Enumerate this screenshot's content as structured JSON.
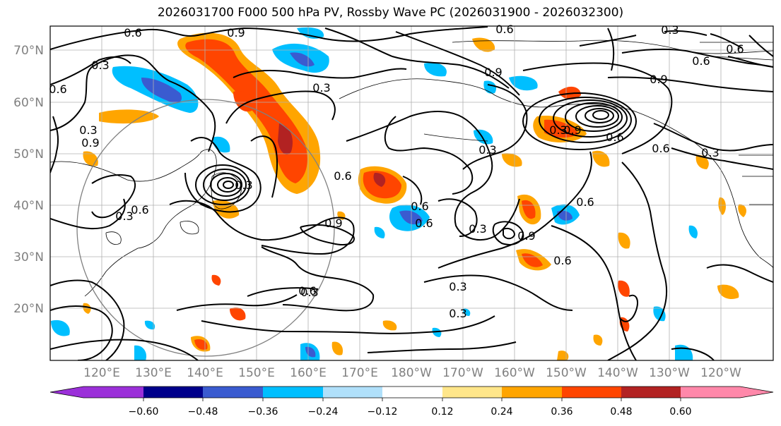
{
  "title": "2026031700 F000 500 hPa PV, Rossby Wave PC (2026031900 - 2026032300)",
  "lat_labels": [
    "70°N",
    "60°N",
    "50°N",
    "40°N",
    "30°N",
    "20°N"
  ],
  "lon_labels": [
    "120°E",
    "130°E",
    "140°E",
    "150°E",
    "160°E",
    "170°E",
    "180°W",
    "170°W",
    "160°W",
    "150°W",
    "140°W",
    "130°W",
    "120°W"
  ],
  "colorbar": {
    "colors": [
      "#9b30d9",
      "#00008b",
      "#3a5bd0",
      "#00bfff",
      "#b0e0fa",
      "#ffffff",
      "#ffe68a",
      "#ffa500",
      "#ff4500",
      "#b22222",
      "#ff88aa"
    ],
    "tick_labels": [
      "−0.60",
      "−0.48",
      "−0.36",
      "−0.24",
      "−0.12",
      "0.12",
      "0.24",
      "0.36",
      "0.48",
      "0.60"
    ]
  },
  "contour_labels": [
    "0.6",
    "0.9",
    "0.3",
    "0.6",
    "0.3",
    "0.9",
    "0.6",
    "0.3",
    "0.3",
    "0.6",
    "0.3",
    "0.3",
    "0.9",
    "0.6",
    "0.6",
    "0.6",
    "0.9",
    "0.3",
    "0.6",
    "0.6",
    "0.3",
    "0.3",
    "0.3",
    "0.6",
    "0.9",
    "0.6",
    "0.9",
    "0.6",
    "0.3",
    "0.3",
    "0.6",
    "0.6",
    "0.9",
    "0.3"
  ]
}
